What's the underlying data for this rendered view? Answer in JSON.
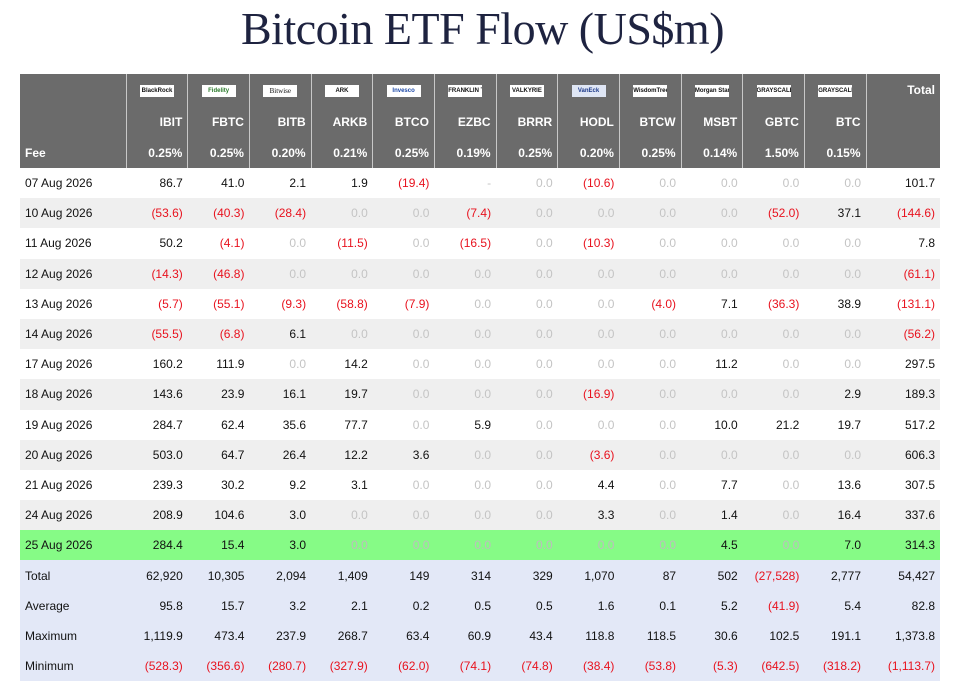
{
  "title": "Bitcoin ETF Flow (US$m)",
  "colors": {
    "header_bg": "#6b6b6b",
    "highlight_row": "#86fb86",
    "stats_bg": "#e3e8f7",
    "negative": "#e8121e",
    "zero": "#c4c4c4"
  },
  "funds": [
    {
      "issuer_logo": "BlackRock",
      "ticker": "IBIT",
      "fee": "0.25%"
    },
    {
      "issuer_logo": "Fidelity",
      "ticker": "FBTC",
      "fee": "0.25%"
    },
    {
      "issuer_logo": "Bitwise",
      "ticker": "BITB",
      "fee": "0.20%"
    },
    {
      "issuer_logo": "ARK",
      "ticker": "ARKB",
      "fee": "0.21%"
    },
    {
      "issuer_logo": "Invesco",
      "ticker": "BTCO",
      "fee": "0.25%"
    },
    {
      "issuer_logo": "FRANKLIN TEMPLETON",
      "ticker": "EZBC",
      "fee": "0.19%"
    },
    {
      "issuer_logo": "VALKYRIE",
      "ticker": "BRRR",
      "fee": "0.25%"
    },
    {
      "issuer_logo": "VanEck",
      "ticker": "HODL",
      "fee": "0.20%"
    },
    {
      "issuer_logo": "WisdomTree",
      "ticker": "BTCW",
      "fee": "0.25%"
    },
    {
      "issuer_logo": "Morgan Stanley",
      "ticker": "MSBT",
      "fee": "0.14%"
    },
    {
      "issuer_logo": "GRAYSCALE",
      "ticker": "GBTC",
      "fee": "1.50%"
    },
    {
      "issuer_logo": "GRAYSCALE",
      "ticker": "BTC",
      "fee": "0.15%"
    }
  ],
  "header": {
    "total_label": "Total",
    "fee_label": "Fee"
  },
  "rows": [
    {
      "date": "07 Aug 2026",
      "values": [
        "86.7",
        "41.0",
        "2.1",
        "1.9",
        "(19.4)",
        "-",
        "0.0",
        "(10.6)",
        "0.0",
        "0.0",
        "0.0",
        "0.0"
      ],
      "total": "101.7"
    },
    {
      "date": "10 Aug 2026",
      "values": [
        "(53.6)",
        "(40.3)",
        "(28.4)",
        "0.0",
        "0.0",
        "(7.4)",
        "0.0",
        "0.0",
        "0.0",
        "0.0",
        "(52.0)",
        "37.1"
      ],
      "total": "(144.6)"
    },
    {
      "date": "11 Aug 2026",
      "values": [
        "50.2",
        "(4.1)",
        "0.0",
        "(11.5)",
        "0.0",
        "(16.5)",
        "0.0",
        "(10.3)",
        "0.0",
        "0.0",
        "0.0",
        "0.0"
      ],
      "total": "7.8"
    },
    {
      "date": "12 Aug 2026",
      "values": [
        "(14.3)",
        "(46.8)",
        "0.0",
        "0.0",
        "0.0",
        "0.0",
        "0.0",
        "0.0",
        "0.0",
        "0.0",
        "0.0",
        "0.0"
      ],
      "total": "(61.1)"
    },
    {
      "date": "13 Aug 2026",
      "values": [
        "(5.7)",
        "(55.1)",
        "(9.3)",
        "(58.8)",
        "(7.9)",
        "0.0",
        "0.0",
        "0.0",
        "(4.0)",
        "7.1",
        "(36.3)",
        "38.9"
      ],
      "total": "(131.1)"
    },
    {
      "date": "14 Aug 2026",
      "values": [
        "(55.5)",
        "(6.8)",
        "6.1",
        "0.0",
        "0.0",
        "0.0",
        "0.0",
        "0.0",
        "0.0",
        "0.0",
        "0.0",
        "0.0"
      ],
      "total": "(56.2)"
    },
    {
      "date": "17 Aug 2026",
      "values": [
        "160.2",
        "111.9",
        "0.0",
        "14.2",
        "0.0",
        "0.0",
        "0.0",
        "0.0",
        "0.0",
        "11.2",
        "0.0",
        "0.0"
      ],
      "total": "297.5"
    },
    {
      "date": "18 Aug 2026",
      "values": [
        "143.6",
        "23.9",
        "16.1",
        "19.7",
        "0.0",
        "0.0",
        "0.0",
        "(16.9)",
        "0.0",
        "0.0",
        "0.0",
        "2.9"
      ],
      "total": "189.3"
    },
    {
      "date": "19 Aug 2026",
      "values": [
        "284.7",
        "62.4",
        "35.6",
        "77.7",
        "0.0",
        "5.9",
        "0.0",
        "0.0",
        "0.0",
        "10.0",
        "21.2",
        "19.7"
      ],
      "total": "517.2"
    },
    {
      "date": "20 Aug 2026",
      "values": [
        "503.0",
        "64.7",
        "26.4",
        "12.2",
        "3.6",
        "0.0",
        "0.0",
        "(3.6)",
        "0.0",
        "0.0",
        "0.0",
        "0.0"
      ],
      "total": "606.3"
    },
    {
      "date": "21 Aug 2026",
      "values": [
        "239.3",
        "30.2",
        "9.2",
        "3.1",
        "0.0",
        "0.0",
        "0.0",
        "4.4",
        "0.0",
        "7.7",
        "0.0",
        "13.6"
      ],
      "total": "307.5"
    },
    {
      "date": "24 Aug 2026",
      "values": [
        "208.9",
        "104.6",
        "3.0",
        "0.0",
        "0.0",
        "0.0",
        "0.0",
        "3.3",
        "0.0",
        "1.4",
        "0.0",
        "16.4"
      ],
      "total": "337.6"
    },
    {
      "date": "25 Aug 2026",
      "values": [
        "284.4",
        "15.4",
        "3.0",
        "0.0",
        "0.0",
        "0.0",
        "0.0",
        "0.0",
        "0.0",
        "4.5",
        "0.0",
        "7.0"
      ],
      "total": "314.3",
      "highlight": true
    }
  ],
  "stats": [
    {
      "label": "Total",
      "values": [
        "62,920",
        "10,305",
        "2,094",
        "1,409",
        "149",
        "314",
        "329",
        "1,070",
        "87",
        "502",
        "(27,528)",
        "2,777"
      ],
      "total": "54,427"
    },
    {
      "label": "Average",
      "values": [
        "95.8",
        "15.7",
        "3.2",
        "2.1",
        "0.2",
        "0.5",
        "0.5",
        "1.6",
        "0.1",
        "5.2",
        "(41.9)",
        "5.4"
      ],
      "total": "82.8"
    },
    {
      "label": "Maximum",
      "values": [
        "1,119.9",
        "473.4",
        "237.9",
        "268.7",
        "63.4",
        "60.9",
        "43.4",
        "118.8",
        "118.5",
        "30.6",
        "102.5",
        "191.1"
      ],
      "total": "1,373.8"
    },
    {
      "label": "Minimum",
      "values": [
        "(528.3)",
        "(356.6)",
        "(280.7)",
        "(327.9)",
        "(62.0)",
        "(74.1)",
        "(74.8)",
        "(38.4)",
        "(53.8)",
        "(5.3)",
        "(642.5)",
        "(318.2)"
      ],
      "total": "(1,113.7)"
    }
  ]
}
